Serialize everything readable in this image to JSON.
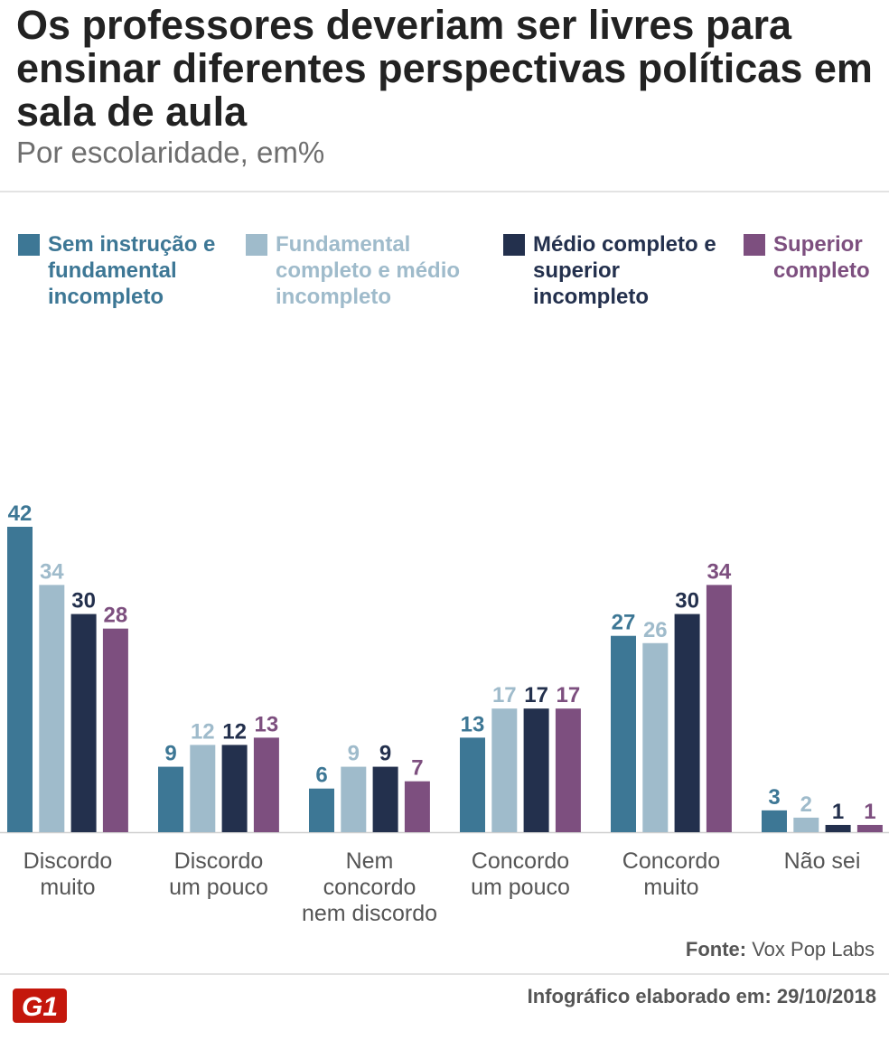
{
  "header": {
    "title": "Os professores deveriam ser livres para ensinar diferentes perspectivas políticas em sala de aula",
    "subtitle": "Por escolaridade, em%"
  },
  "legend": [
    {
      "label": "Sem instrução e fundamental incompleto",
      "color": "#3d7795"
    },
    {
      "label": "Fundamental completo e médio incompleto",
      "color": "#9fbbcb"
    },
    {
      "label": "Médio completo e superior incompleto",
      "color": "#23304d"
    },
    {
      "label": "Superior completo",
      "color": "#7d4f7f"
    }
  ],
  "chart_data": {
    "type": "bar",
    "title": "Os professores deveriam ser livres para ensinar diferentes perspectivas políticas em sala de aula",
    "subtitle": "Por escolaridade, em%",
    "xlabel": "",
    "ylabel": "",
    "ylim": [
      0,
      42
    ],
    "grid": false,
    "legend_position": "top",
    "categories": [
      [
        "Discordo",
        "muito"
      ],
      [
        "Discordo",
        "um pouco"
      ],
      [
        "Nem",
        "concordo",
        "nem discordo"
      ],
      [
        "Concordo",
        "um pouco"
      ],
      [
        "Concordo",
        "muito"
      ],
      [
        "Não sei"
      ]
    ],
    "series": [
      {
        "name": "Sem instrução e fundamental incompleto",
        "color": "#3d7795",
        "values": [
          42,
          9,
          6,
          13,
          27,
          3
        ]
      },
      {
        "name": "Fundamental completo e médio incompleto",
        "color": "#9fbbcb",
        "values": [
          34,
          12,
          9,
          17,
          26,
          2
        ]
      },
      {
        "name": "Médio completo e superior incompleto",
        "color": "#23304d",
        "values": [
          30,
          12,
          9,
          17,
          30,
          1
        ]
      },
      {
        "name": "Superior completo",
        "color": "#7d4f7f",
        "values": [
          28,
          13,
          7,
          17,
          34,
          1
        ]
      }
    ]
  },
  "footer": {
    "source_label": "Fonte:",
    "source_value": "Vox Pop Labs",
    "date_text": "Infográfico elaborado em: 29/10/2018",
    "logo_text": "G1",
    "logo_color": "#c4170c"
  }
}
